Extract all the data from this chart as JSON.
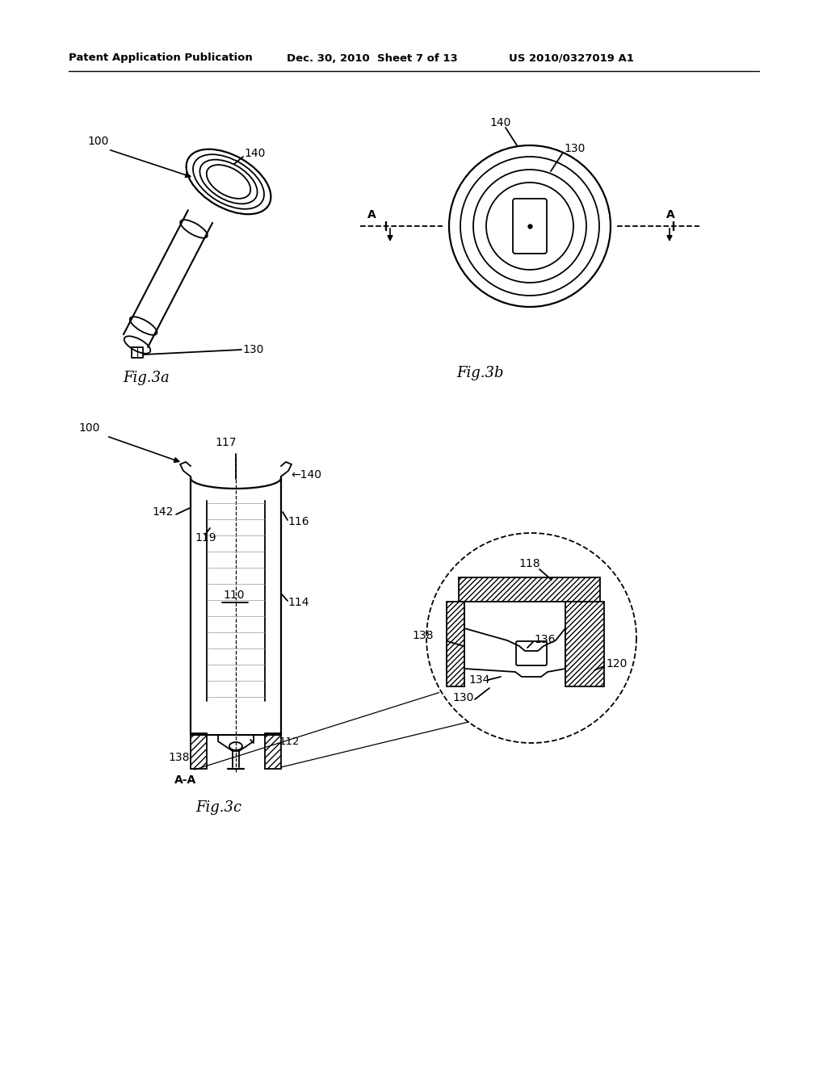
{
  "background_color": "#ffffff",
  "header_left": "Patent Application Publication",
  "header_mid": "Dec. 30, 2010  Sheet 7 of 13",
  "header_right": "US 2010/0327019 A1",
  "fig3a_label": "Fig.3a",
  "fig3b_label": "Fig.3b",
  "fig3c_label": "Fig.3c",
  "text_color": "#000000"
}
